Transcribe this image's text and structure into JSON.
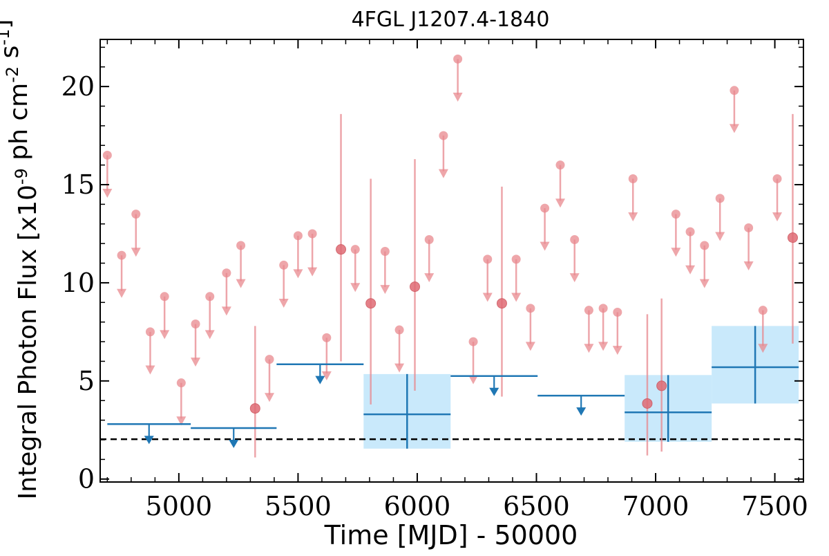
{
  "chart_data": {
    "type": "scatter",
    "title": "4FGL J1207.4-1840",
    "xlabel": "Time [MJD] - 50000",
    "ylabel": "Integral Photon Flux [x10^{-9} ph cm^{-2} s^{-1}]",
    "xlim": [
      4670,
      7620
    ],
    "ylim": [
      -0.15,
      22.4
    ],
    "x_ticks": [
      5000,
      5500,
      6000,
      6500,
      7000,
      7500
    ],
    "y_ticks": [
      0,
      5,
      10,
      15,
      20
    ],
    "grid": false,
    "reference_line": {
      "y": 2.03,
      "style": "dashed",
      "color": "#000000"
    },
    "colors": {
      "short_bins": "#e8888e",
      "long_bins": "#1f77b4",
      "long_bins_band": "#c9e9fb"
    },
    "series": [
      {
        "points": [
          {
            "x": 4700,
            "y": 16.5,
            "upper_limit": true
          },
          {
            "x": 4760,
            "y": 11.4,
            "upper_limit": true
          },
          {
            "x": 4820,
            "y": 13.5,
            "upper_limit": true
          },
          {
            "x": 4880,
            "y": 7.5,
            "upper_limit": true
          },
          {
            "x": 4940,
            "y": 9.3,
            "upper_limit": true
          },
          {
            "x": 5010,
            "y": 4.9,
            "upper_limit": true
          },
          {
            "x": 5070,
            "y": 7.9,
            "upper_limit": true
          },
          {
            "x": 5130,
            "y": 9.3,
            "upper_limit": true
          },
          {
            "x": 5200,
            "y": 10.5,
            "upper_limit": true
          },
          {
            "x": 5260,
            "y": 11.9,
            "upper_limit": true
          },
          {
            "x": 5320,
            "y": 3.6,
            "err_lo": 1.1,
            "err_hi": 7.8
          },
          {
            "x": 5380,
            "y": 6.1,
            "upper_limit": true
          },
          {
            "x": 5440,
            "y": 10.9,
            "upper_limit": true
          },
          {
            "x": 5500,
            "y": 12.4,
            "upper_limit": true
          },
          {
            "x": 5560,
            "y": 12.5,
            "upper_limit": true
          },
          {
            "x": 5620,
            "y": 7.2,
            "upper_limit": true
          },
          {
            "x": 5680,
            "y": 11.7,
            "err_lo": 6.0,
            "err_hi": 18.6
          },
          {
            "x": 5740,
            "y": 11.7,
            "upper_limit": true
          },
          {
            "x": 5805,
            "y": 8.95,
            "err_lo": 3.8,
            "err_hi": 15.3
          },
          {
            "x": 5865,
            "y": 11.6,
            "upper_limit": true
          },
          {
            "x": 5925,
            "y": 7.6,
            "upper_limit": true
          },
          {
            "x": 5990,
            "y": 9.8,
            "err_lo": 4.5,
            "err_hi": 16.3
          },
          {
            "x": 6050,
            "y": 12.2,
            "upper_limit": true
          },
          {
            "x": 6110,
            "y": 17.5,
            "upper_limit": true
          },
          {
            "x": 6170,
            "y": 21.4,
            "upper_limit": true
          },
          {
            "x": 6235,
            "y": 7.0,
            "upper_limit": true
          },
          {
            "x": 6295,
            "y": 11.2,
            "upper_limit": true
          },
          {
            "x": 6355,
            "y": 8.95,
            "err_lo": 4.2,
            "err_hi": 14.9
          },
          {
            "x": 6415,
            "y": 11.2,
            "upper_limit": true
          },
          {
            "x": 6475,
            "y": 8.7,
            "upper_limit": true
          },
          {
            "x": 6535,
            "y": 13.8,
            "upper_limit": true
          },
          {
            "x": 6600,
            "y": 16.0,
            "upper_limit": true
          },
          {
            "x": 6660,
            "y": 12.2,
            "upper_limit": true
          },
          {
            "x": 6720,
            "y": 8.6,
            "upper_limit": true
          },
          {
            "x": 6780,
            "y": 8.7,
            "upper_limit": true
          },
          {
            "x": 6840,
            "y": 8.5,
            "upper_limit": true
          },
          {
            "x": 6905,
            "y": 15.3,
            "upper_limit": true
          },
          {
            "x": 6965,
            "y": 3.85,
            "err_lo": 1.2,
            "err_hi": 8.4
          },
          {
            "x": 7025,
            "y": 4.75,
            "err_lo": 1.4,
            "err_hi": 9.2
          },
          {
            "x": 7085,
            "y": 13.5,
            "upper_limit": true
          },
          {
            "x": 7145,
            "y": 12.6,
            "upper_limit": true
          },
          {
            "x": 7205,
            "y": 11.9,
            "upper_limit": true
          },
          {
            "x": 7270,
            "y": 14.3,
            "upper_limit": true
          },
          {
            "x": 7330,
            "y": 19.8,
            "upper_limit": true
          },
          {
            "x": 7390,
            "y": 12.8,
            "upper_limit": true
          },
          {
            "x": 7450,
            "y": 8.6,
            "upper_limit": true
          },
          {
            "x": 7510,
            "y": 15.3,
            "upper_limit": true
          },
          {
            "x": 7575,
            "y": 12.3,
            "err_lo": 6.9,
            "err_hi": 18.6
          }
        ]
      },
      {
        "bins": [
          {
            "x_start": 4700,
            "x_end": 5050,
            "y": 2.8,
            "upper_limit": true
          },
          {
            "x_start": 5050,
            "x_end": 5410,
            "y": 2.6,
            "upper_limit": true
          },
          {
            "x_start": 5410,
            "x_end": 5775,
            "y": 5.85,
            "upper_limit": true
          },
          {
            "x_start": 5775,
            "x_end": 6140,
            "y": 3.3,
            "err_lo": 1.55,
            "err_hi": 5.35
          },
          {
            "x_start": 6140,
            "x_end": 6505,
            "y": 5.25,
            "upper_limit": true
          },
          {
            "x_start": 6505,
            "x_end": 6870,
            "y": 4.25,
            "upper_limit": true
          },
          {
            "x_start": 6870,
            "x_end": 7235,
            "y": 3.4,
            "err_lo": 1.9,
            "err_hi": 5.3
          },
          {
            "x_start": 7235,
            "x_end": 7600,
            "y": 5.7,
            "err_lo": 3.85,
            "err_hi": 7.8
          }
        ]
      }
    ]
  }
}
